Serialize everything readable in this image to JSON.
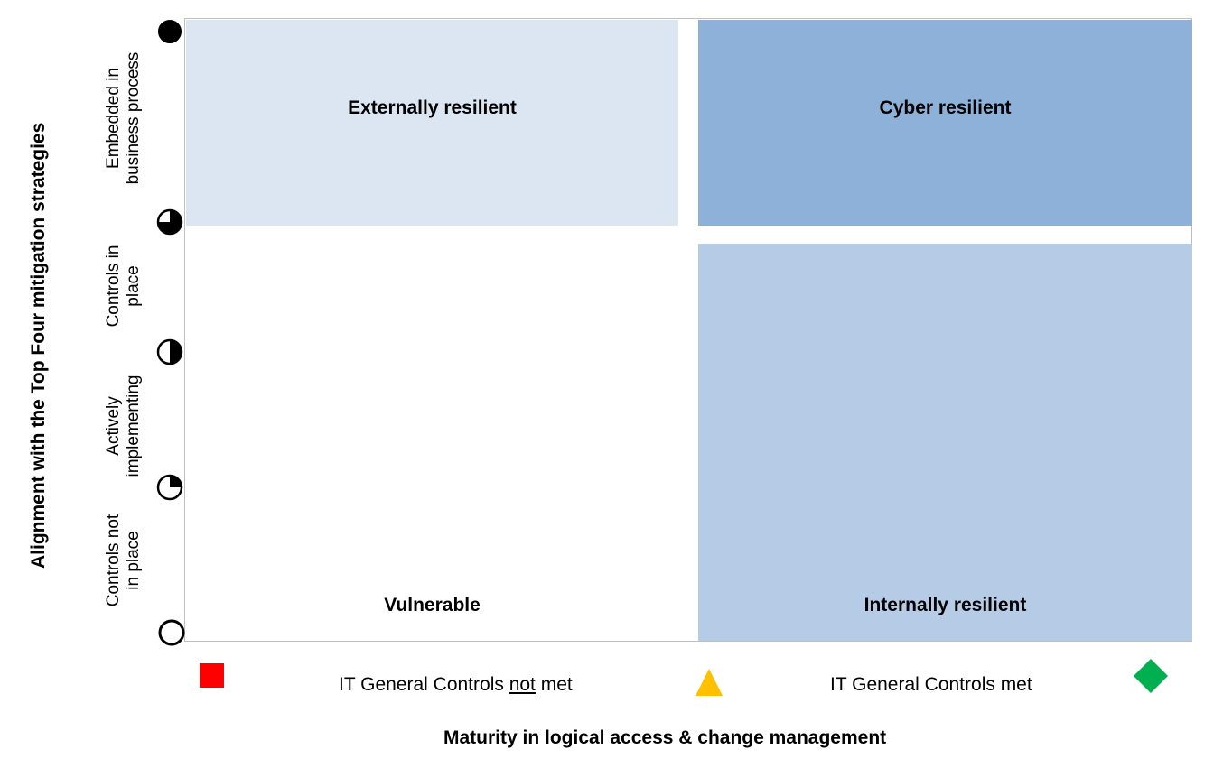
{
  "quadrants": {
    "top_left": {
      "label": "Externally resilient",
      "color": "#dce6f2"
    },
    "top_right": {
      "label": "Cyber resilient",
      "color": "#8eb1d9"
    },
    "bottom_left": {
      "label": "Vulnerable",
      "color": "#ffffff"
    },
    "bottom_right": {
      "label": "Internally resilient",
      "color": "#b6cbe6"
    }
  },
  "y_axis": {
    "title": "Alignment  with the Top Four mitigation strategies",
    "levels": [
      {
        "line1": "Embedded in",
        "line2": "business process",
        "marker": "full-circle-icon"
      },
      {
        "line1": "Controls in",
        "line2": "place",
        "marker": "three-quarter-circle-icon"
      },
      {
        "line1": "Actively",
        "line2": "implementing",
        "marker": "half-circle-icon"
      },
      {
        "line1": "Controls not",
        "line2": "in place",
        "marker": "quarter-circle-icon"
      }
    ],
    "bottom_marker": "empty-circle-icon"
  },
  "x_axis": {
    "title": "Maturity in logical access & change management",
    "levels": [
      {
        "prefix": "IT General Controls ",
        "emphasis": "not",
        "suffix": " met",
        "marker": "red-square-icon",
        "marker_color": "#ff0000"
      },
      {
        "prefix": "IT General Controls met",
        "emphasis": "",
        "suffix": "",
        "marker": "yellow-triangle-icon",
        "marker_color": "#ffc000"
      }
    ],
    "end_marker": "green-diamond-icon",
    "end_marker_color": "#00b050"
  }
}
